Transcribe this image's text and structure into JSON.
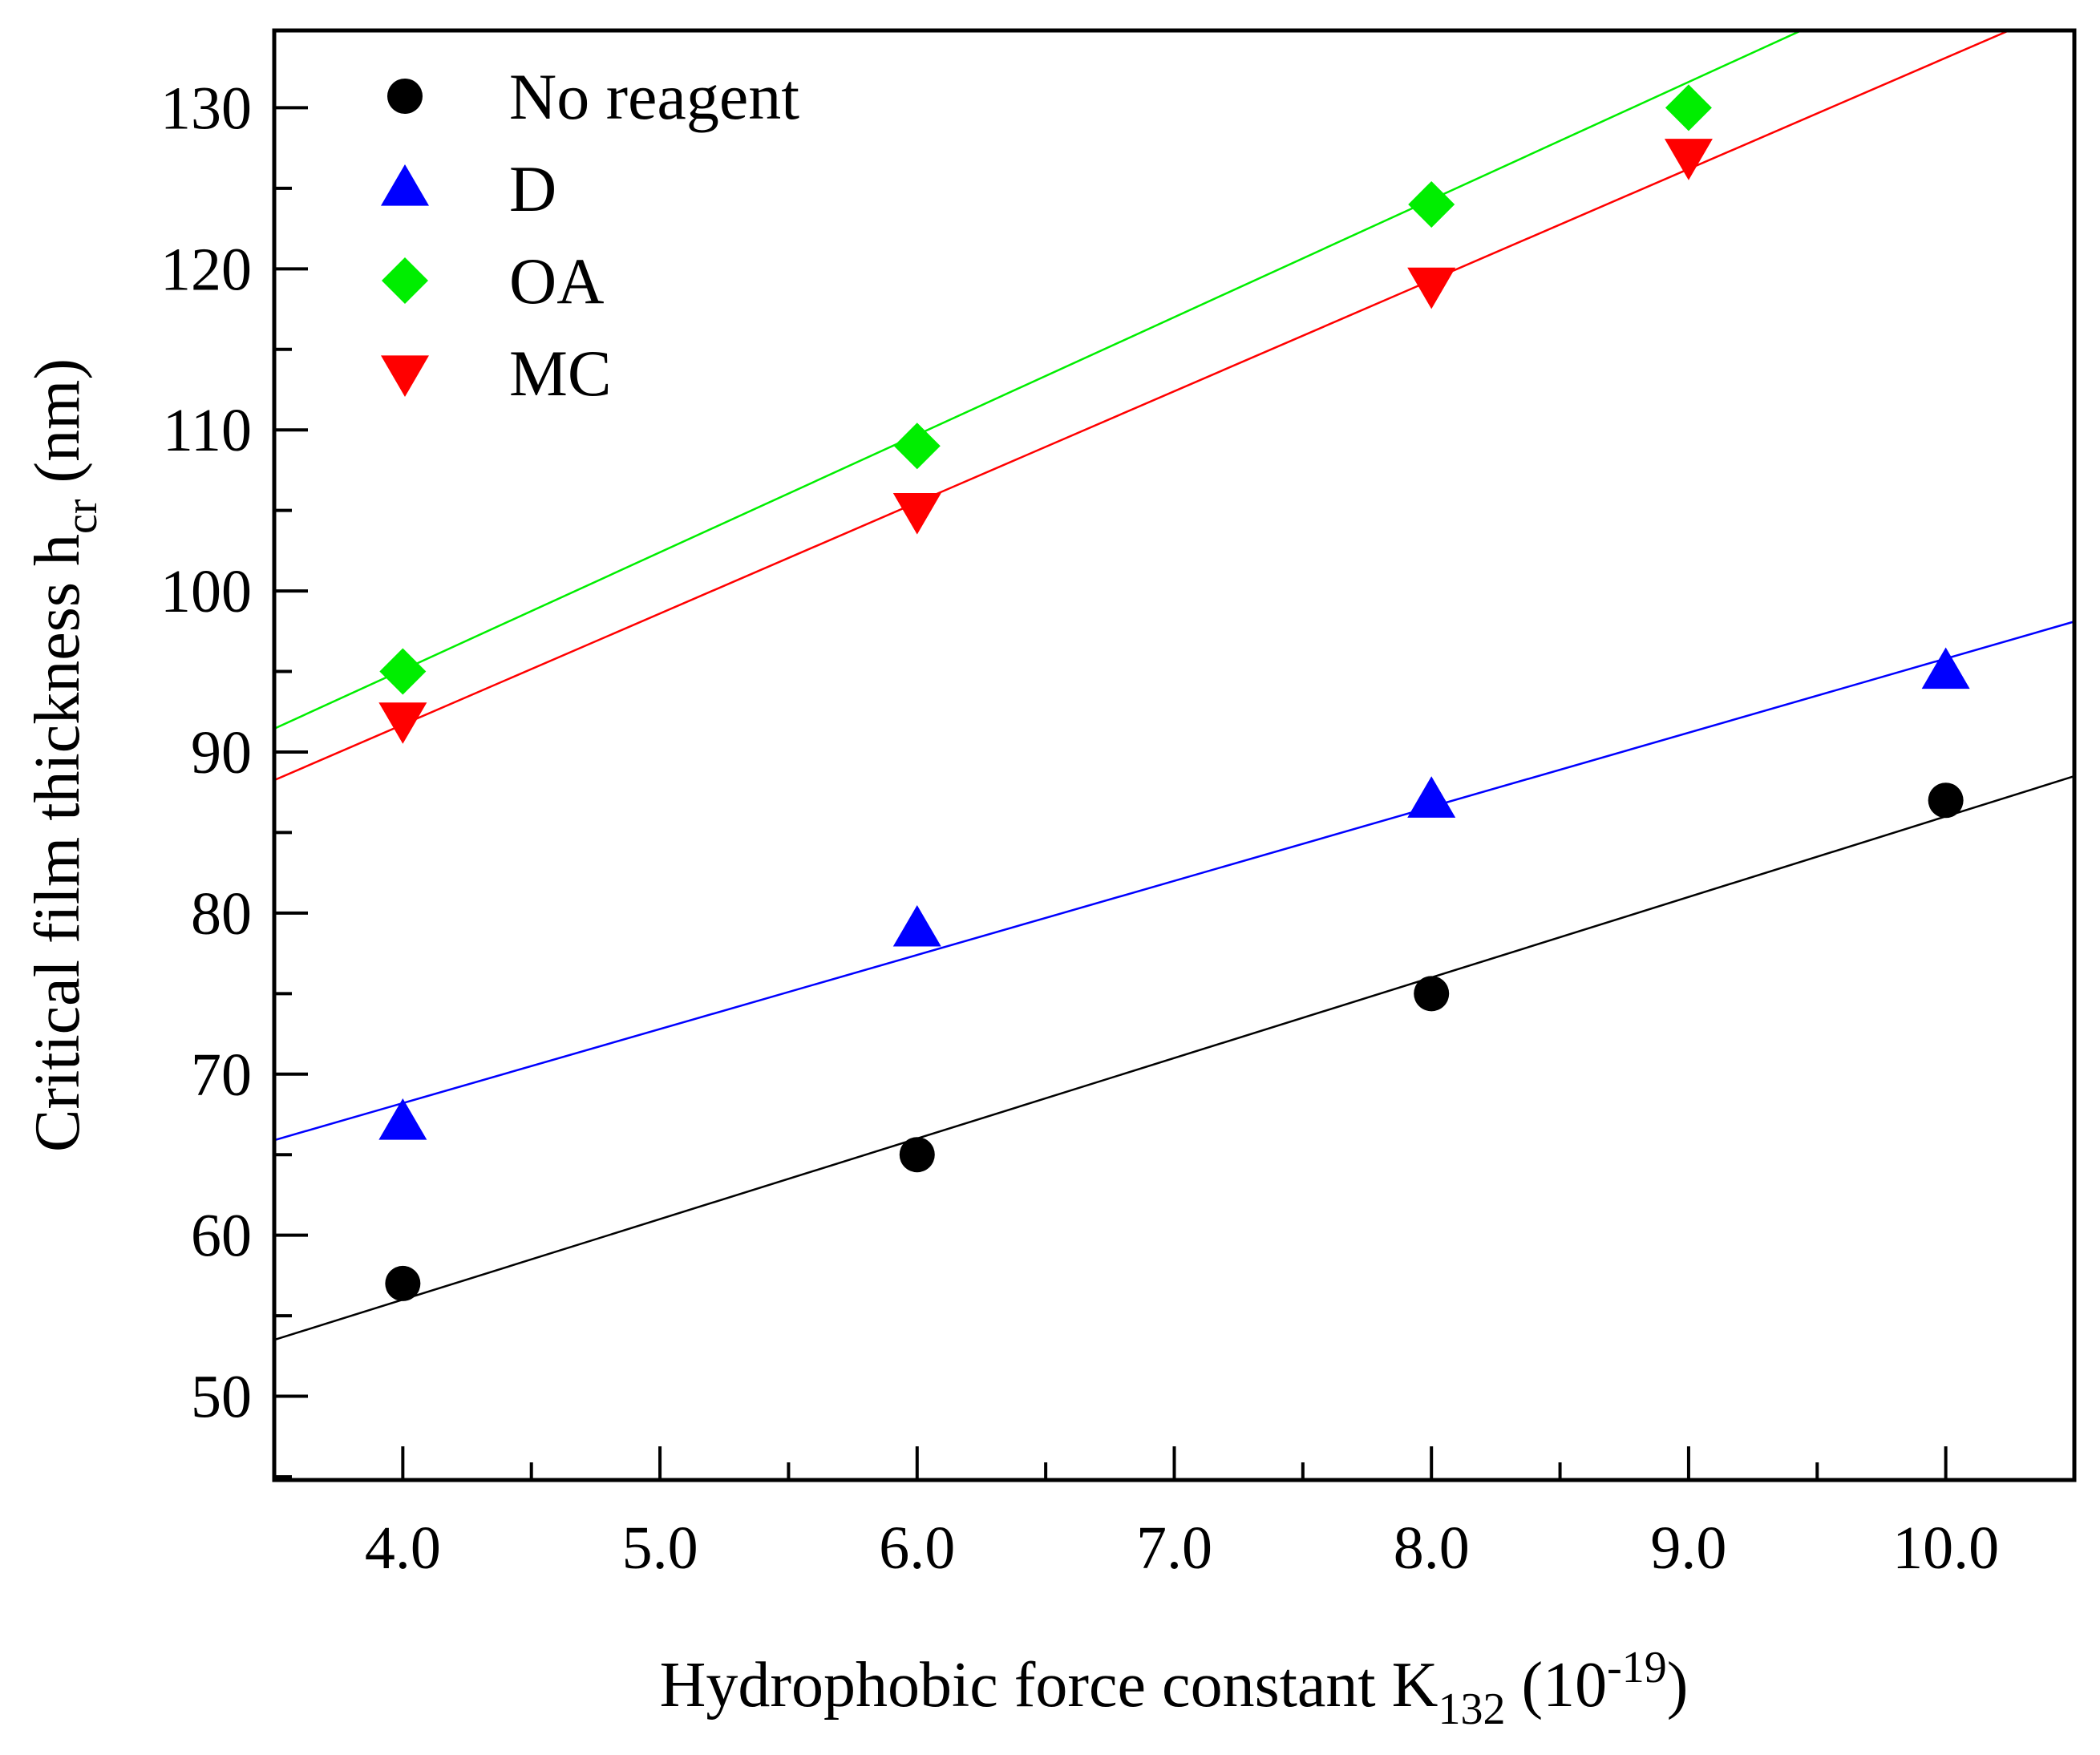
{
  "chart_data": {
    "type": "scatter",
    "xlabel": {
      "main": "Hydrophobic force constant K",
      "subscript": "132",
      "paren_open": " (10",
      "superscript": "-19",
      "paren_close": ")"
    },
    "ylabel": {
      "main": "Critical film thickness h",
      "subscript": "cr",
      "unit": " (nm)"
    },
    "xlim": [
      3.5,
      10.5
    ],
    "ylim": [
      44.8,
      134.8
    ],
    "x_ticks": [
      4,
      5,
      6,
      7,
      8,
      9,
      10
    ],
    "x_tick_labels": [
      "4.0",
      "5.0",
      "6.0",
      "7.0",
      "8.0",
      "9.0",
      "10.0"
    ],
    "y_ticks": [
      50,
      60,
      70,
      80,
      90,
      100,
      110,
      120,
      130
    ],
    "y_tick_labels": [
      "50",
      "60",
      "70",
      "80",
      "90",
      "100",
      "110",
      "120",
      "130"
    ],
    "grid": false,
    "legend_position": "top-left",
    "series": [
      {
        "name": "No reagent",
        "marker": "circle",
        "color": "#000000",
        "x": [
          4,
          6,
          8,
          10
        ],
        "y": [
          57,
          65,
          75,
          87
        ],
        "fit": {
          "slope": 5.0,
          "intercept": 36.0
        }
      },
      {
        "name": "D",
        "marker": "triangle-up",
        "color": "#0000ff",
        "x": [
          4,
          6,
          8,
          10
        ],
        "y": [
          67,
          79,
          87,
          95
        ],
        "fit": {
          "slope": 4.6,
          "intercept": 49.8
        }
      },
      {
        "name": "OA",
        "marker": "diamond",
        "color": "#00ee00",
        "x": [
          4,
          6,
          8,
          9
        ],
        "y": [
          95,
          109,
          124,
          130
        ],
        "fit": {
          "slope": 7.3,
          "intercept": 65.9
        }
      },
      {
        "name": "MC",
        "marker": "triangle-down",
        "color": "#ff0000",
        "x": [
          4,
          6,
          8,
          9
        ],
        "y": [
          92,
          105,
          119,
          127
        ],
        "fit": {
          "slope": 6.9,
          "intercept": 64.1
        }
      }
    ]
  }
}
